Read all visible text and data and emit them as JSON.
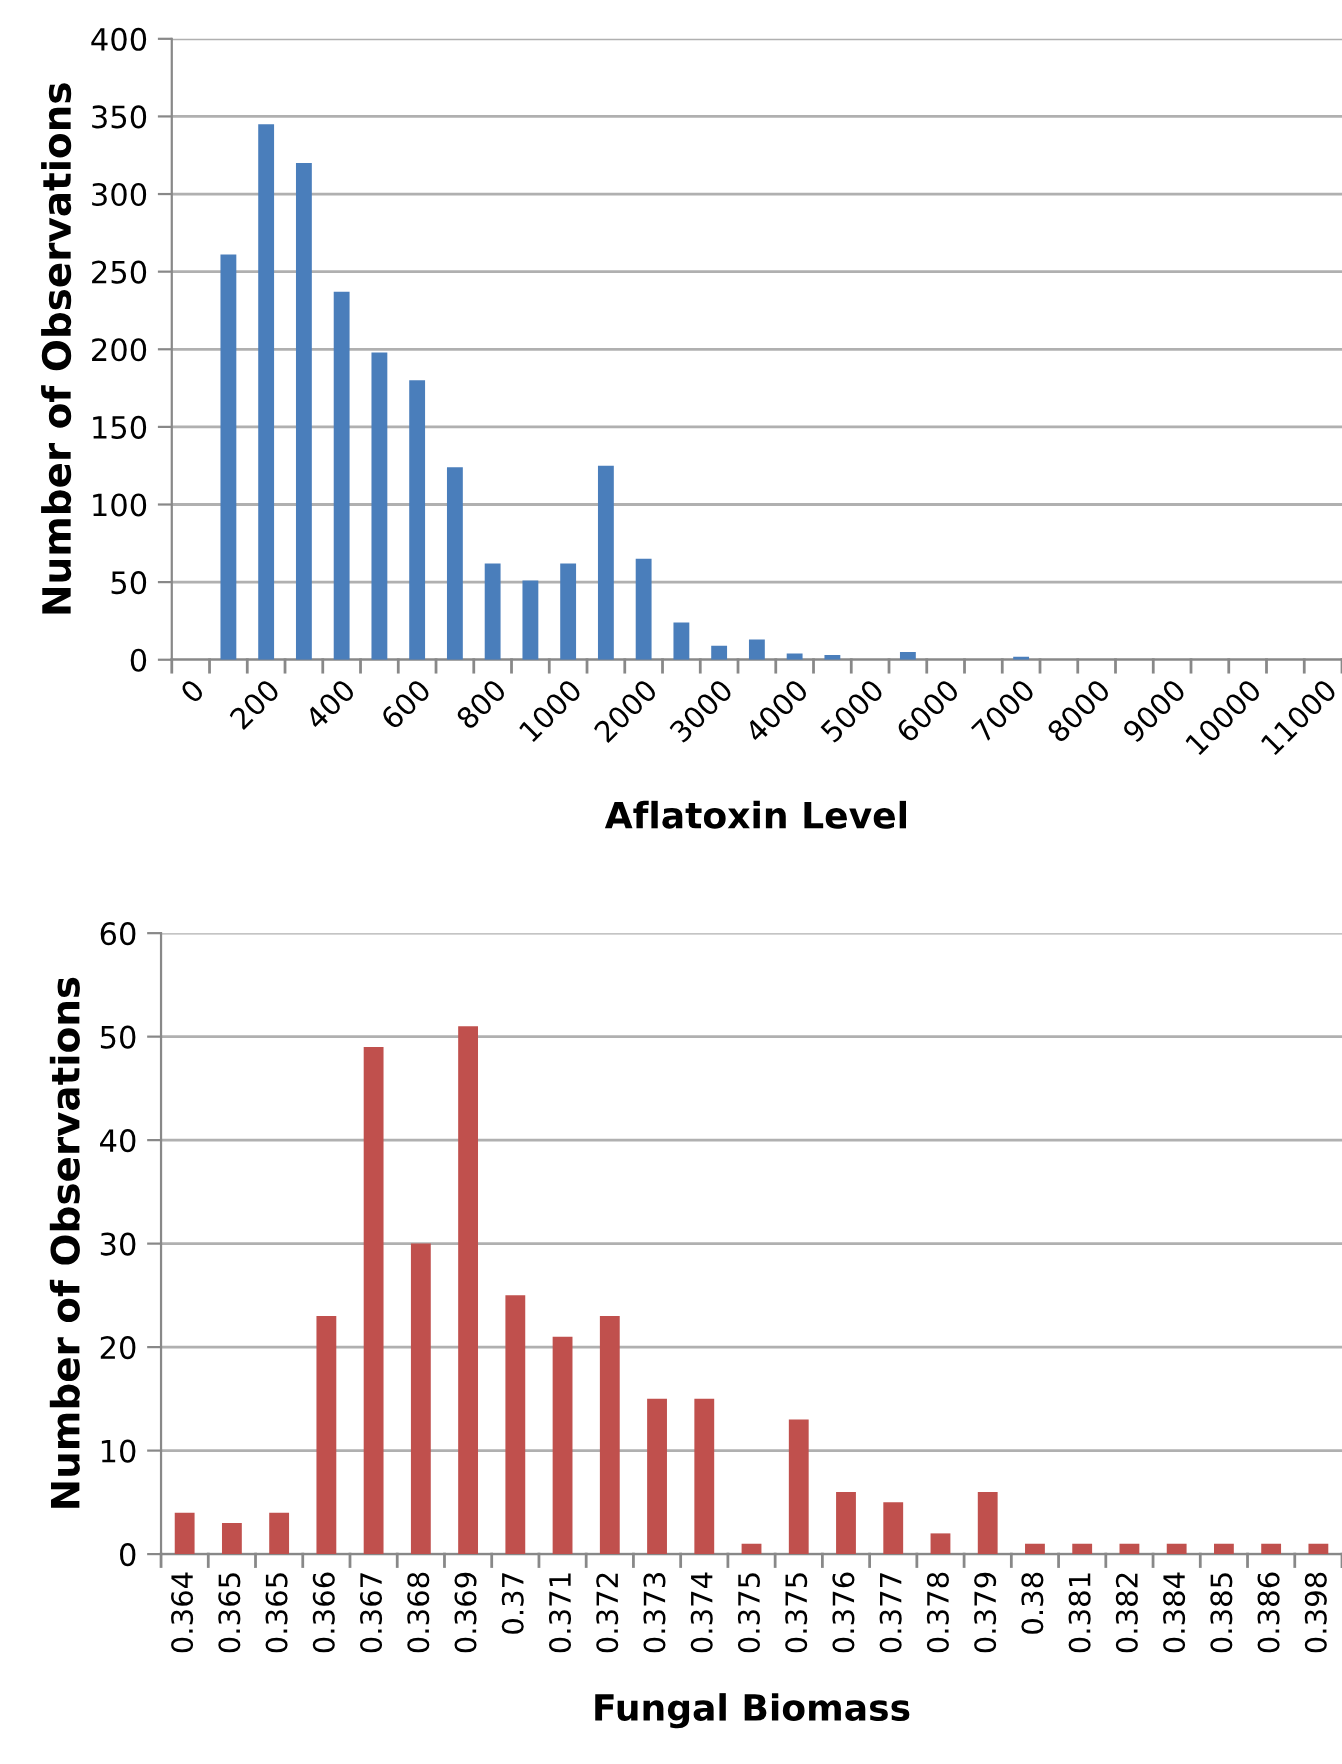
{
  "chart_data": [
    {
      "type": "bar",
      "xlabel": "Aflatoxin Level",
      "ylabel": "Number of Observations",
      "categories": [
        "0",
        null,
        "200",
        null,
        "400",
        null,
        "600",
        null,
        "800",
        null,
        "1000",
        null,
        "2000",
        null,
        "3000",
        null,
        "4000",
        null,
        "5000",
        null,
        "6000",
        null,
        "7000",
        null,
        "8000",
        null,
        "9000",
        null,
        "10000",
        null,
        "11000"
      ],
      "values": [
        0,
        261,
        345,
        320,
        237,
        198,
        180,
        124,
        62,
        51,
        62,
        125,
        65,
        24,
        9,
        13,
        4,
        3,
        0,
        5,
        0,
        0,
        2,
        0,
        0,
        0,
        0,
        0,
        0,
        0,
        0
      ],
      "color": "#4a7ebb",
      "ylim": [
        0,
        400
      ],
      "yticks": [
        0,
        50,
        100,
        150,
        200,
        250,
        300,
        350,
        400
      ],
      "grid": "y"
    },
    {
      "type": "bar",
      "xlabel": "Fungal Biomass",
      "ylabel": "Number of Observations",
      "categories": [
        "0.364",
        "0.365",
        "0.365",
        "0.366",
        "0.367",
        "0.368",
        "0.369",
        "0.37",
        "0.371",
        "0.372",
        "0.373",
        "0.374",
        "0.375",
        "0.375",
        "0.376",
        "0.377",
        "0.378",
        "0.379",
        "0.38",
        "0.381",
        "0.382",
        "0.384",
        "0.385",
        "0.386",
        "0.398"
      ],
      "values": [
        4,
        3,
        4,
        23,
        49,
        30,
        51,
        25,
        21,
        23,
        15,
        15,
        1,
        13,
        6,
        5,
        2,
        6,
        1,
        1,
        1,
        1,
        1,
        1,
        1
      ],
      "color": "#c0504d",
      "ylim": [
        0,
        60
      ],
      "yticks": [
        0,
        10,
        20,
        30,
        40,
        50,
        60
      ],
      "grid": "y"
    }
  ]
}
